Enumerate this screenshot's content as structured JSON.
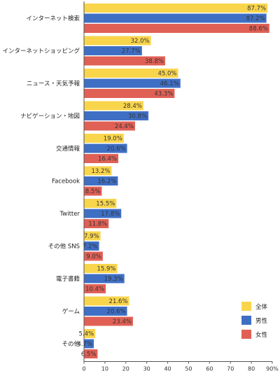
{
  "chart_data": {
    "type": "bar",
    "orientation": "horizontal",
    "title": "",
    "xlabel": "",
    "ylabel": "",
    "xlim": [
      0,
      90
    ],
    "x_ticks": [
      0,
      10,
      20,
      30,
      40,
      50,
      60,
      70,
      80,
      90
    ],
    "x_tick_labels": [
      "0",
      "10",
      "20",
      "30",
      "40",
      "50",
      "60",
      "70",
      "80",
      "90%"
    ],
    "value_suffix": "%",
    "grid": false,
    "legend_position": "bottom-right",
    "categories": [
      "インターネット検索",
      "インターネットショッピング",
      "ニュース・天気予報",
      "ナビゲーション・地図",
      "交通情報",
      "Facebook",
      "Twitter",
      "その他 SNS",
      "電子書籍",
      "ゲーム",
      "その他"
    ],
    "series": [
      {
        "name": "全体",
        "color": "#F9D54C",
        "values": [
          87.7,
          32.0,
          45.0,
          28.4,
          19.0,
          13.2,
          15.5,
          7.9,
          15.9,
          21.6,
          5.4
        ]
      },
      {
        "name": "男性",
        "color": "#3F6FC5",
        "values": [
          87.2,
          27.7,
          46.1,
          30.8,
          20.6,
          16.2,
          17.8,
          7.2,
          19.3,
          20.6,
          4.7
        ]
      },
      {
        "name": "女性",
        "color": "#E06055",
        "values": [
          88.6,
          38.8,
          43.3,
          24.4,
          16.4,
          8.5,
          11.8,
          9.0,
          10.4,
          23.4,
          6.5
        ]
      }
    ]
  }
}
